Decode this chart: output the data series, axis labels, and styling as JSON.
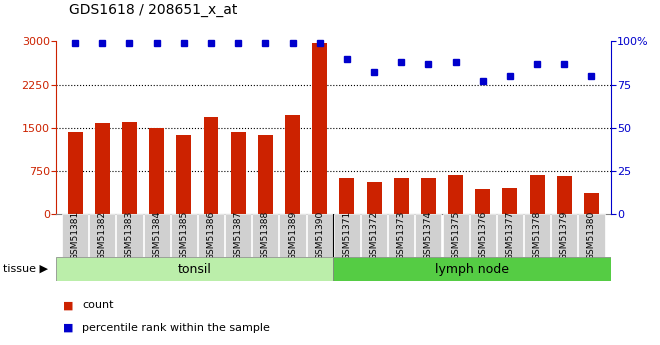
{
  "title": "GDS1618 / 208651_x_at",
  "samples": [
    "GSM51381",
    "GSM51382",
    "GSM51383",
    "GSM51384",
    "GSM51385",
    "GSM51386",
    "GSM51387",
    "GSM51388",
    "GSM51389",
    "GSM51390",
    "GSM51371",
    "GSM51372",
    "GSM51373",
    "GSM51374",
    "GSM51375",
    "GSM51376",
    "GSM51377",
    "GSM51378",
    "GSM51379",
    "GSM51380"
  ],
  "counts": [
    1420,
    1580,
    1590,
    1500,
    1370,
    1680,
    1420,
    1380,
    1720,
    2980,
    620,
    560,
    620,
    620,
    670,
    430,
    450,
    670,
    660,
    370
  ],
  "percentiles": [
    99,
    99,
    99,
    99,
    99,
    99,
    99,
    99,
    99,
    99,
    90,
    82,
    88,
    87,
    88,
    77,
    80,
    87,
    87,
    80
  ],
  "group_labels": [
    "tonsil",
    "lymph node"
  ],
  "group_sizes": [
    10,
    10
  ],
  "bar_color": "#cc2200",
  "dot_color": "#0000cc",
  "tonsil_bg": "#bbeeaa",
  "lymph_bg": "#55cc44",
  "tissue_label": "tissue",
  "legend_count": "count",
  "legend_pct": "percentile rank within the sample",
  "ylim_left": [
    0,
    3000
  ],
  "ylim_right": [
    0,
    100
  ],
  "yticks_left": [
    0,
    750,
    1500,
    2250,
    3000
  ],
  "yticks_right": [
    0,
    25,
    50,
    75,
    100
  ],
  "grid_vals": [
    750,
    1500,
    2250
  ],
  "bar_width": 0.55
}
